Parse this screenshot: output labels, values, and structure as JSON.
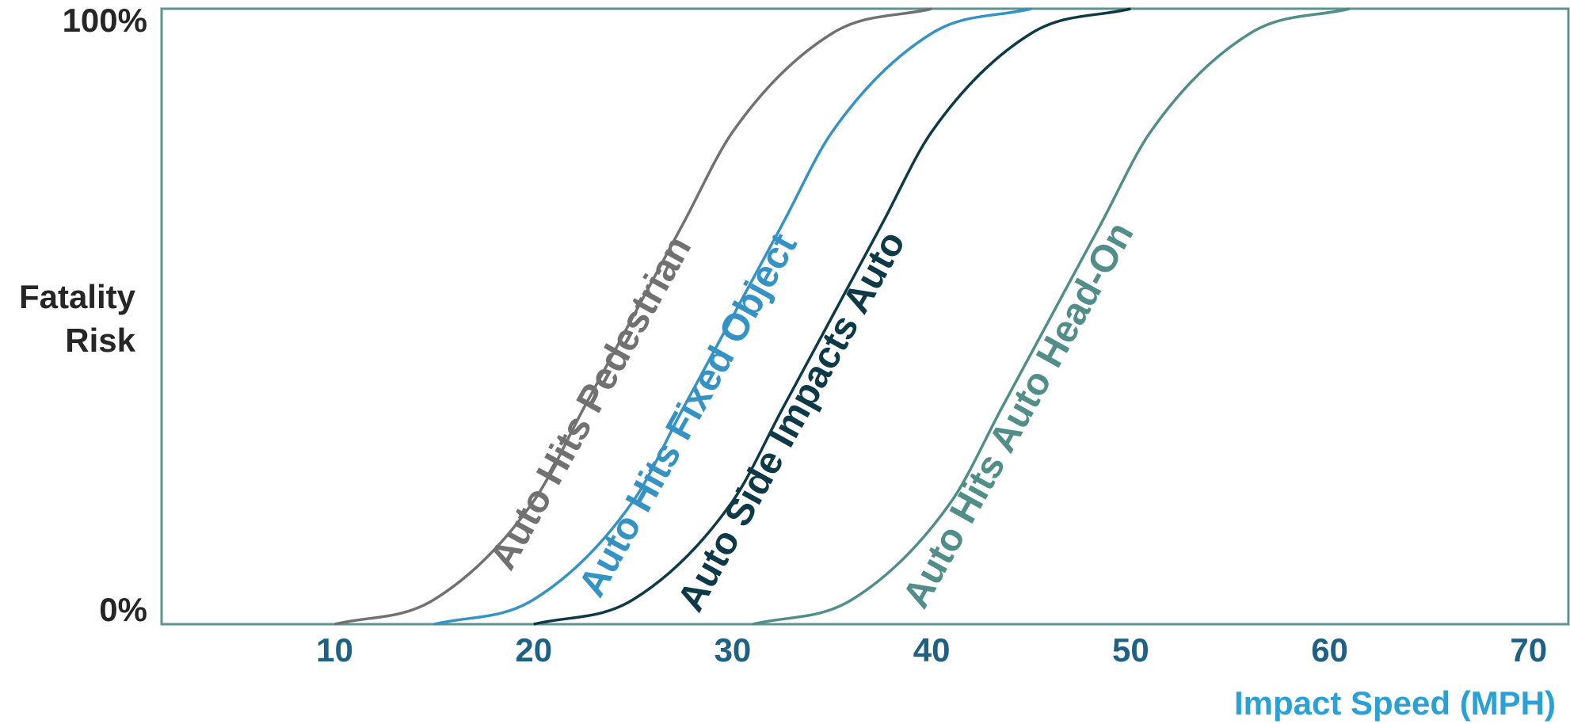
{
  "chart_data": {
    "type": "line",
    "title": "",
    "xlabel": "Impact Speed (MPH)",
    "ylabel_lines": [
      "Fatality",
      "Risk"
    ],
    "xlim": [
      1.3,
      72
    ],
    "ylim": [
      0,
      100
    ],
    "x_ticks": [
      10,
      20,
      30,
      40,
      50,
      60,
      70
    ],
    "y_tick_labels": [
      {
        "value": 0,
        "label": "0%"
      },
      {
        "value": 100,
        "label": "100%"
      }
    ],
    "grid": false,
    "legend": "none",
    "series": [
      {
        "name": "Auto Hits Pedestrian",
        "color": "#717171",
        "x": [
          10,
          15,
          20,
          22.5,
          25,
          27.5,
          30,
          35,
          40
        ],
        "y": [
          0,
          4,
          20,
          35,
          50,
          65,
          80,
          96,
          100
        ]
      },
      {
        "name": "Auto Hits Fixed Object",
        "color": "#3592c4",
        "x": [
          15,
          20,
          25,
          27.5,
          30,
          32.5,
          35,
          40,
          45
        ],
        "y": [
          0,
          4,
          20,
          35,
          50,
          65,
          80,
          96,
          100
        ]
      },
      {
        "name": "Auto Side Impacts Auto",
        "color": "#0e3a48",
        "x": [
          20,
          25,
          30,
          32.5,
          35,
          37.5,
          40,
          45,
          50
        ],
        "y": [
          0,
          4,
          20,
          35,
          50,
          65,
          80,
          96,
          100
        ]
      },
      {
        "name": "Auto Hits Auto Head-On",
        "color": "#518e89",
        "x": [
          31,
          36,
          41,
          43.5,
          46,
          48.5,
          51,
          56,
          61
        ],
        "y": [
          0,
          4,
          20,
          35,
          50,
          65,
          80,
          96,
          100
        ]
      }
    ],
    "colors": {
      "axis": "#5d9391",
      "x_tick_text": "#1f6184",
      "x_label_text": "#2aa0d4",
      "y_text": "#262626"
    }
  }
}
